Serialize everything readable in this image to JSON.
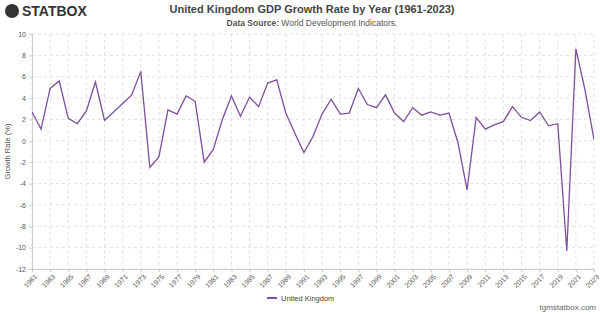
{
  "chart_data": {
    "type": "line",
    "title": "United Kingdom GDP Growth Rate by Year (1961-2023)",
    "subtitle": "Data Source: World Development Indicators.",
    "y_label": "Growth Rate (%)",
    "annotations": [
      "STATBOX",
      "tgmstatbox.com"
    ],
    "x": [
      1961,
      1962,
      1963,
      1964,
      1965,
      1966,
      1967,
      1968,
      1969,
      1970,
      1971,
      1972,
      1973,
      1974,
      1975,
      1976,
      1977,
      1978,
      1979,
      1980,
      1981,
      1982,
      1983,
      1984,
      1985,
      1986,
      1987,
      1988,
      1989,
      1990,
      1991,
      1992,
      1993,
      1994,
      1995,
      1996,
      1997,
      1998,
      1999,
      2000,
      2001,
      2002,
      2003,
      2004,
      2005,
      2006,
      2007,
      2008,
      2009,
      2010,
      2011,
      2012,
      2013,
      2014,
      2015,
      2016,
      2017,
      2018,
      2019,
      2020,
      2021,
      2022,
      2023
    ],
    "series": [
      {
        "name": "United Kingdom",
        "color": "#7d4f9c",
        "values": [
          2.7,
          1.1,
          4.9,
          5.6,
          2.1,
          1.6,
          2.8,
          5.5,
          1.9,
          2.7,
          3.5,
          4.3,
          6.5,
          -2.5,
          -1.5,
          2.9,
          2.5,
          4.2,
          3.7,
          -2.0,
          -0.8,
          2.0,
          4.2,
          2.3,
          4.1,
          3.2,
          5.4,
          5.7,
          2.6,
          0.7,
          -1.1,
          0.4,
          2.5,
          3.9,
          2.5,
          2.6,
          4.9,
          3.4,
          3.1,
          4.3,
          2.6,
          1.8,
          3.1,
          2.4,
          2.7,
          2.4,
          2.6,
          -0.2,
          -4.6,
          2.2,
          1.1,
          1.5,
          1.8,
          3.2,
          2.2,
          1.9,
          2.7,
          1.4,
          1.6,
          -10.3,
          8.6,
          4.8,
          0.1
        ]
      }
    ],
    "xlim": [
      1961,
      2023
    ],
    "xticks": [
      1961,
      1963,
      1965,
      1967,
      1969,
      1971,
      1973,
      1975,
      1977,
      1979,
      1981,
      1983,
      1985,
      1987,
      1989,
      1991,
      1993,
      1995,
      1997,
      1999,
      2001,
      2003,
      2005,
      2007,
      2009,
      2011,
      2013,
      2015,
      2017,
      2019,
      2021,
      2023
    ],
    "ylim": [
      -12,
      10
    ],
    "yticks": [
      -12,
      -10,
      -8,
      -6,
      -4,
      -2,
      0,
      2,
      4,
      6,
      8,
      10
    ],
    "grid": true,
    "legend": "bottom"
  }
}
